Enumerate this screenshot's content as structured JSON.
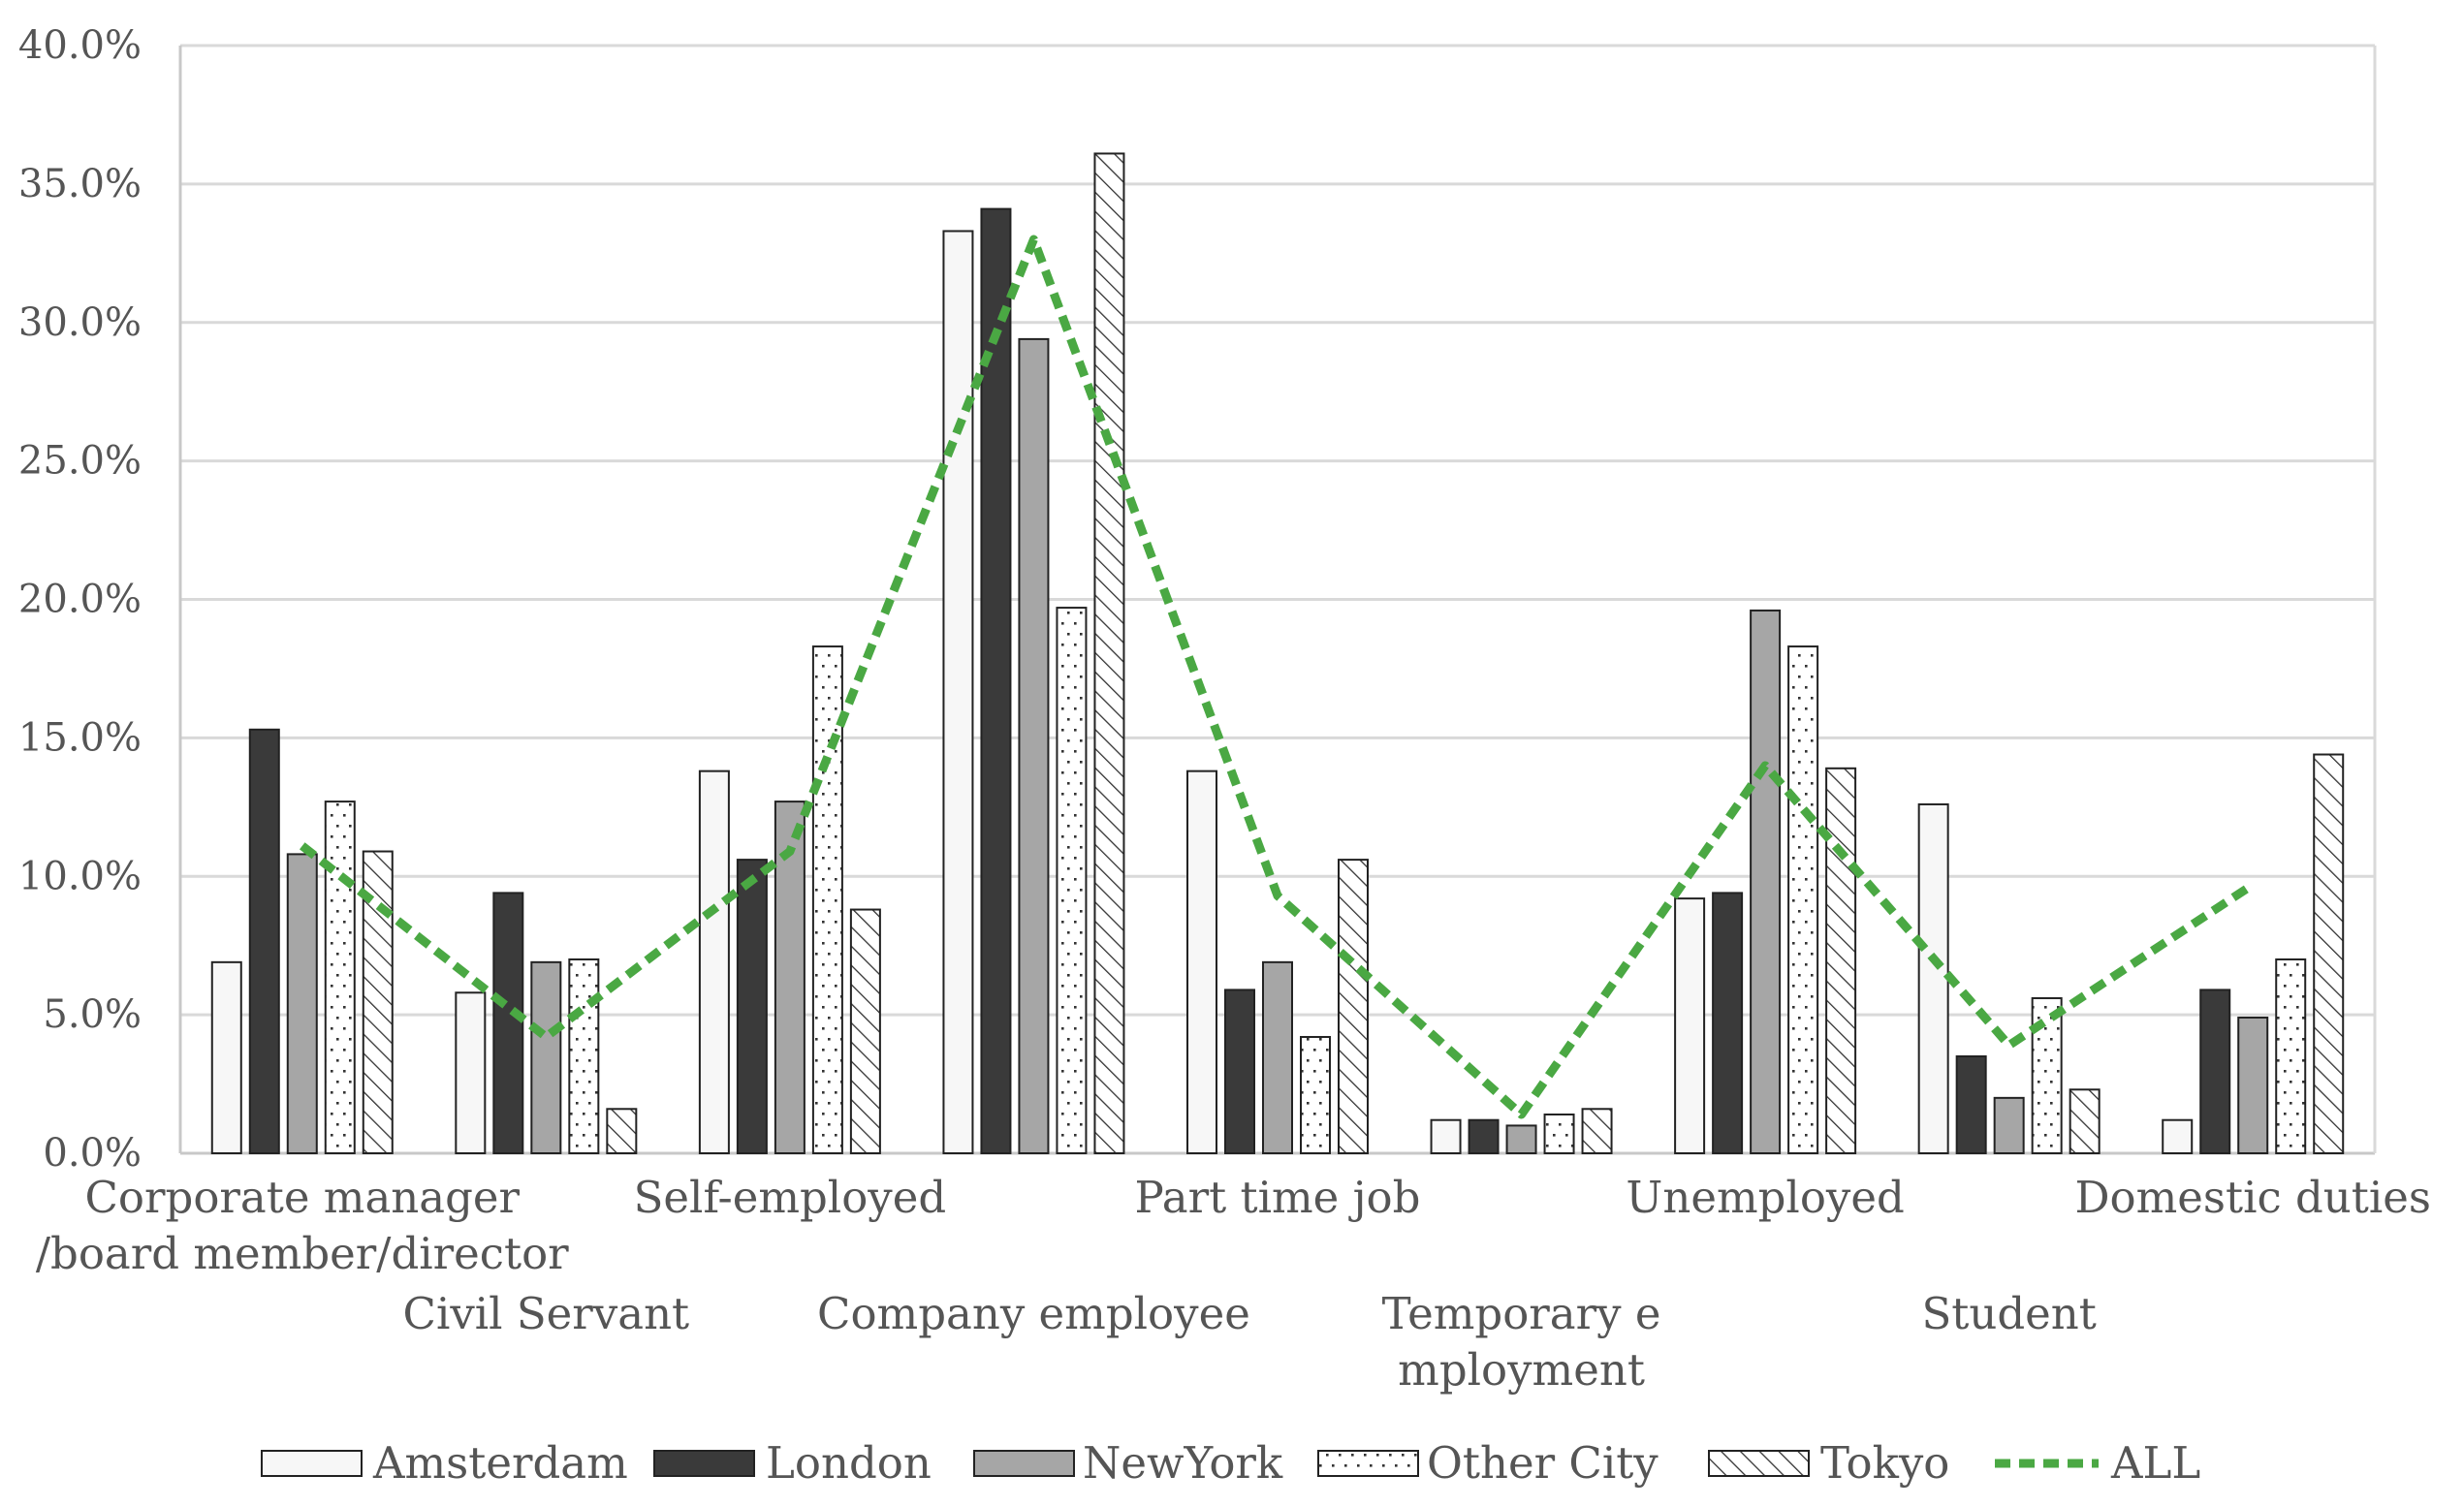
{
  "chart_data": {
    "type": "bar",
    "title": "",
    "xlabel": "",
    "ylabel": "",
    "ylim": [
      0,
      40
    ],
    "yticks": [
      0,
      5,
      10,
      15,
      20,
      25,
      30,
      35,
      40
    ],
    "ytick_labels": [
      "0.0%",
      "5.0%",
      "10.0%",
      "15.0%",
      "20.0%",
      "25.0%",
      "30.0%",
      "35.0%",
      "40.0%"
    ],
    "grid": true,
    "legend_position": "bottom",
    "categories": [
      [
        "Corporate manager",
        "/board member/director"
      ],
      [
        "Civil Servant"
      ],
      [
        "Self-employed"
      ],
      [
        "Company employee"
      ],
      [
        "Part time job"
      ],
      [
        "Temporary e",
        "mployment"
      ],
      [
        "Unemployed"
      ],
      [
        "Student"
      ],
      [
        "Domestic duties"
      ]
    ],
    "series": [
      {
        "name": "Amsterdam",
        "pattern": "white",
        "values": [
          6.9,
          5.8,
          13.8,
          33.3,
          13.8,
          1.2,
          9.2,
          12.6,
          1.2
        ]
      },
      {
        "name": "London",
        "pattern": "black",
        "values": [
          15.3,
          9.4,
          10.6,
          34.1,
          5.9,
          1.2,
          9.4,
          3.5,
          5.9
        ]
      },
      {
        "name": "NewYork",
        "pattern": "gray",
        "values": [
          10.8,
          6.9,
          12.7,
          29.4,
          6.9,
          1.0,
          19.6,
          2.0,
          4.9
        ]
      },
      {
        "name": "Other City",
        "pattern": "dots",
        "values": [
          12.7,
          7.0,
          18.3,
          19.7,
          4.2,
          1.4,
          18.3,
          5.6,
          7.0
        ]
      },
      {
        "name": "Tokyo",
        "pattern": "hatch",
        "values": [
          10.9,
          1.6,
          8.8,
          36.1,
          10.6,
          1.6,
          13.9,
          2.3,
          14.4
        ]
      }
    ],
    "line": {
      "name": "ALL",
      "type": "line",
      "style": "dashed",
      "color": "#4aa843",
      "values": [
        11.1,
        4.2,
        10.9,
        33.0,
        9.3,
        1.4,
        14.0,
        3.9,
        9.7
      ]
    }
  },
  "colors": {
    "white_bar": "#f7f7f7",
    "black_bar": "#3a3a3a",
    "gray_bar": "#a6a6a6",
    "line": "#4aa843",
    "grid": "#d9d9d9",
    "text": "#555555"
  }
}
